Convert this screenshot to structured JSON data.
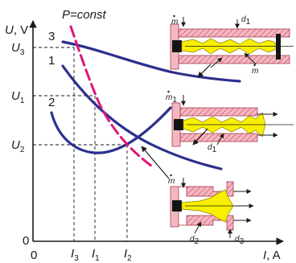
{
  "title": "P=const",
  "y_axis": {
    "label_var": "U",
    "label_unit": ", V",
    "zero": "0"
  },
  "x_axis": {
    "label_var": "I",
    "label_unit": ", A",
    "zero": "0"
  },
  "y_ticks": [
    {
      "var": "U",
      "sub": "3"
    },
    {
      "var": "U",
      "sub": "1"
    },
    {
      "var": "U",
      "sub": "2"
    }
  ],
  "x_ticks": [
    {
      "var": "I",
      "sub": "3"
    },
    {
      "var": "I",
      "sub": "1"
    },
    {
      "var": "I",
      "sub": "2"
    }
  ],
  "curve_numbers": [
    "3",
    "1",
    "2"
  ],
  "colors": {
    "curve": "#2b2f8c",
    "power_line": "#e0147a",
    "nozzle_body": "#f2b8c2",
    "plasma": "#f8f000",
    "plug": "#141414"
  },
  "insets": {
    "top": {
      "mdot": "m",
      "d1": "d",
      "d1_sub": "1",
      "mdot_out": "m"
    },
    "middle": {
      "mdot": "m",
      "mdot_sub": "1",
      "d1": "d",
      "d1_sub": "1"
    },
    "bottom": {
      "mdot": "m",
      "d2": "d",
      "d2_sub": "2",
      "d3": "d",
      "d3_sub": "3"
    }
  }
}
